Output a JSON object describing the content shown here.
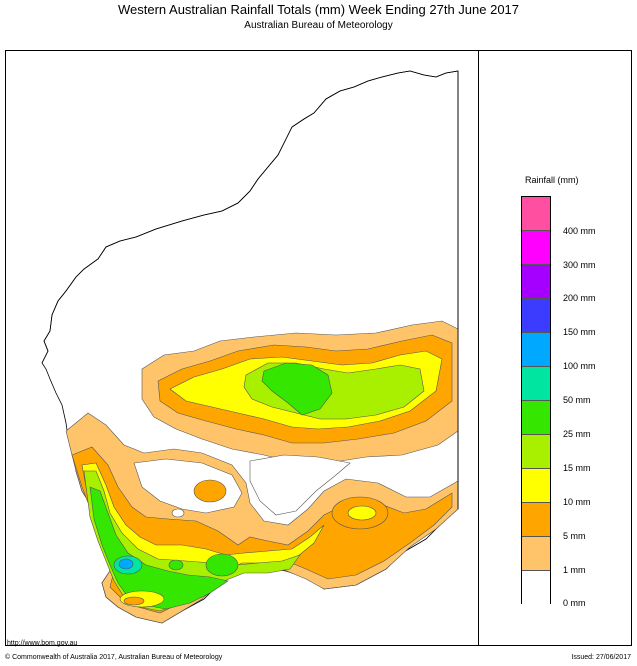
{
  "header": {
    "title": "Western Australian Rainfall Totals (mm)  Week Ending 27th June 2017",
    "subtitle": "Australian Bureau of Meteorology"
  },
  "legend": {
    "title": "Rainfall (mm)",
    "items": [
      {
        "label": "",
        "color": "#ff4fa0"
      },
      {
        "label": "400 mm",
        "color": "#ff00ff"
      },
      {
        "label": "300 mm",
        "color": "#a500ff"
      },
      {
        "label": "200 mm",
        "color": "#3c3cff"
      },
      {
        "label": "150 mm",
        "color": "#00a8ff"
      },
      {
        "label": "100 mm",
        "color": "#00e6a0"
      },
      {
        "label": "50 mm",
        "color": "#34e600"
      },
      {
        "label": "25 mm",
        "color": "#a8f000"
      },
      {
        "label": "15 mm",
        "color": "#ffff00"
      },
      {
        "label": "10 mm",
        "color": "#ffa500"
      },
      {
        "label": "5 mm",
        "color": "#ffc46a"
      },
      {
        "label": "1 mm",
        "color": "#ffffff"
      },
      {
        "label": "0 mm",
        "color": ""
      }
    ]
  },
  "footer": {
    "url": "http://www.bom.gov.au",
    "copyright": "© Commonwealth of Australia 2017, Australian Bureau of Meteorology",
    "issued": "Issued: 27/06/2017"
  }
}
